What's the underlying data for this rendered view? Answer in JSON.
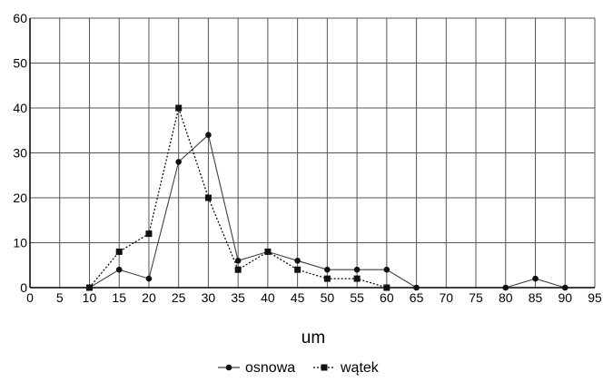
{
  "chart_data": {
    "type": "line",
    "title": "",
    "xlabel": "um",
    "ylabel": "",
    "xlim": [
      0,
      95
    ],
    "ylim": [
      0,
      60
    ],
    "x_ticks": [
      0,
      5,
      10,
      15,
      20,
      25,
      30,
      35,
      40,
      45,
      50,
      55,
      60,
      65,
      70,
      75,
      80,
      85,
      90,
      95
    ],
    "y_ticks": [
      0,
      10,
      20,
      30,
      40,
      50,
      60
    ],
    "grid": true,
    "legend_position": "bottom",
    "series": [
      {
        "name": "osnowa",
        "marker": "circle",
        "line_style": "solid",
        "color": "#404040",
        "segments": [
          [
            [
              10,
              0
            ],
            [
              15,
              4
            ],
            [
              20,
              2
            ],
            [
              25,
              28
            ],
            [
              30,
              34
            ],
            [
              35,
              6
            ],
            [
              40,
              8
            ],
            [
              45,
              6
            ],
            [
              50,
              4
            ],
            [
              55,
              4
            ],
            [
              60,
              4
            ],
            [
              65,
              0
            ]
          ],
          [
            [
              80,
              0
            ],
            [
              85,
              2
            ],
            [
              90,
              0
            ]
          ]
        ]
      },
      {
        "name": "wątek",
        "marker": "square",
        "line_style": "dotted",
        "color": "#000000",
        "segments": [
          [
            [
              10,
              0
            ],
            [
              15,
              8
            ],
            [
              20,
              12
            ],
            [
              25,
              40
            ],
            [
              30,
              20
            ],
            [
              35,
              4
            ],
            [
              40,
              8
            ],
            [
              45,
              4
            ],
            [
              50,
              2
            ],
            [
              55,
              2
            ],
            [
              60,
              0
            ]
          ]
        ]
      }
    ]
  }
}
